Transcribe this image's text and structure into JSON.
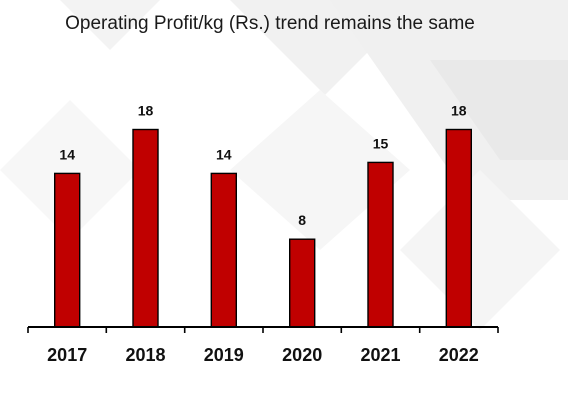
{
  "chart_data": {
    "type": "bar",
    "title": "Operating Profit/kg (Rs.) trend remains the same",
    "categories": [
      "2017",
      "2018",
      "2019",
      "2020",
      "2021",
      "2022"
    ],
    "values": [
      14,
      18,
      14,
      8,
      15,
      18
    ],
    "ylim": [
      0,
      18.5
    ],
    "grid": false,
    "data_labels": true,
    "colors": {
      "bar": "#c00000",
      "bar_outline": "#000000",
      "text": "#111111"
    }
  }
}
